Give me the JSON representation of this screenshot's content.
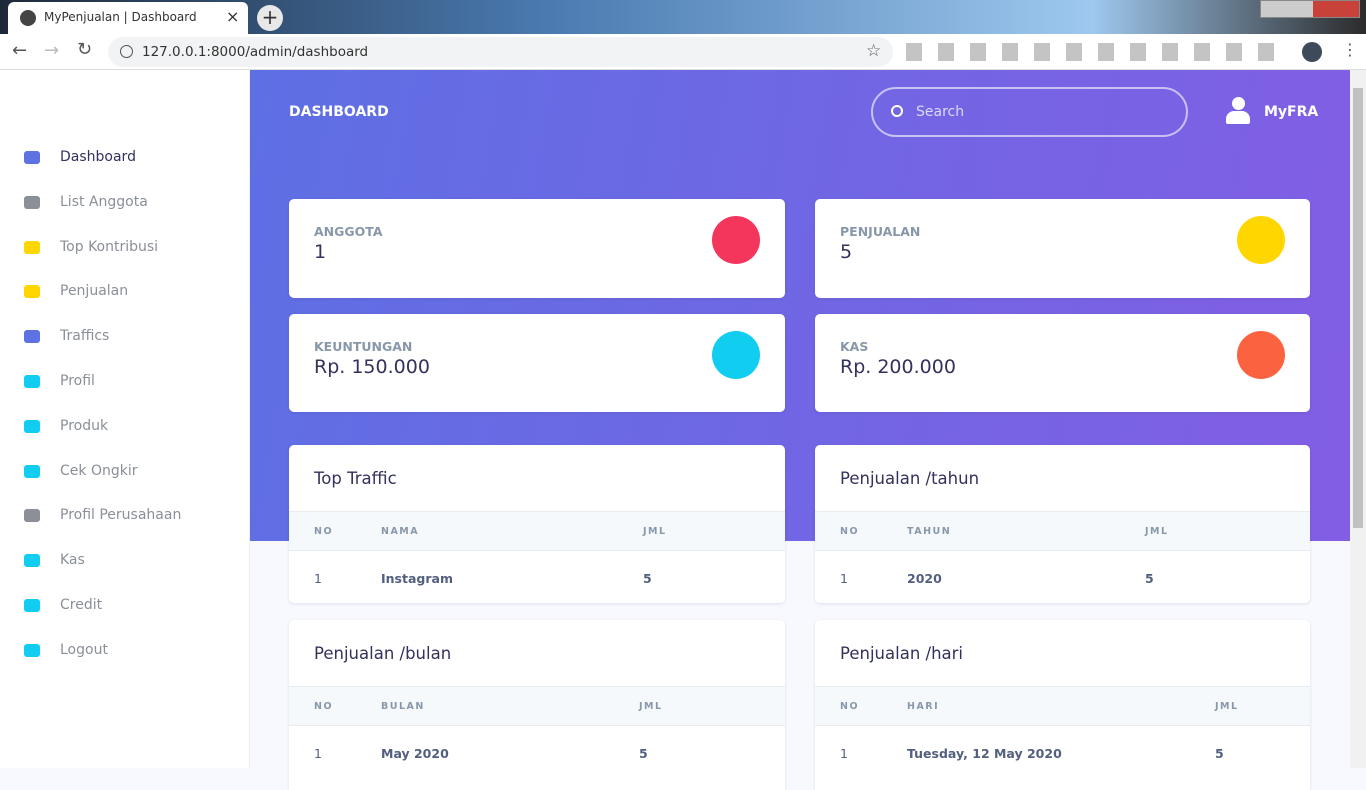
{
  "browser": {
    "tab_title": "MyPenjualan | Dashboard",
    "url": "127.0.0.1:8000/admin/dashboard"
  },
  "sidebar": {
    "items": [
      "Dashboard",
      "List Anggota",
      "Top Kontribusi",
      "Penjualan",
      "Traffics",
      "Profil",
      "Produk",
      "Cek Ongkir",
      "Profil Perusahaan",
      "Kas",
      "Credit",
      "Logout"
    ]
  },
  "header": {
    "title": "DASHBOARD",
    "search_placeholder": "Search",
    "user": "MyFRA"
  },
  "stats": [
    {
      "label": "ANGGOTA",
      "value": "1"
    },
    {
      "label": "PENJUALAN",
      "value": "5"
    },
    {
      "label": "KEUNTUNGAN",
      "value": "Rp. 150.000"
    },
    {
      "label": "KAS",
      "value": "Rp. 200.000"
    }
  ],
  "tables": [
    {
      "title": "Top Traffic",
      "columns": [
        "NO",
        "NAMA",
        "JML"
      ],
      "rows": [
        [
          "1",
          "Instagram",
          "5"
        ]
      ]
    },
    {
      "title": "Penjualan /tahun",
      "columns": [
        "NO",
        "TAHUN",
        "JML"
      ],
      "rows": [
        [
          "1",
          "2020",
          "5"
        ]
      ]
    },
    {
      "title": "Penjualan /bulan",
      "columns": [
        "NO",
        "BULAN",
        "JML"
      ],
      "rows": [
        [
          "1",
          "May 2020",
          "5"
        ]
      ]
    },
    {
      "title": "Penjualan /hari",
      "columns": [
        "NO",
        "HARI",
        "JML"
      ],
      "rows": [
        [
          "1",
          "Tuesday, 12 May 2020",
          "5"
        ]
      ]
    }
  ]
}
